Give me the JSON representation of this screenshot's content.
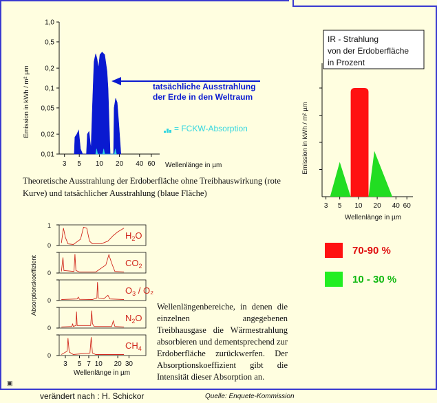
{
  "chart_data": [
    {
      "type": "area",
      "log_y": true,
      "log_x": true,
      "ylabel": "Emission in kWh / m² µm",
      "xlabel": "Wellenlänge in µm",
      "y_ticks": [
        "1,0",
        "0,5",
        "0,2",
        "0,1",
        "0,05",
        "0,02",
        "0,01"
      ],
      "y_tick_values": [
        1.0,
        0.5,
        0.2,
        0.1,
        0.05,
        0.02,
        0.01
      ],
      "x_ticks": [
        "3",
        "5",
        "10",
        "20",
        "40",
        "60"
      ],
      "x_tick_values": [
        3,
        5,
        10,
        20,
        40,
        60
      ],
      "ylim": [
        0.01,
        1.0
      ],
      "xlim": [
        2.5,
        80
      ],
      "series": [
        {
          "color": "#0a1ad0",
          "points": [
            [
              4.2,
              0.01
            ],
            [
              4.3,
              0.018
            ],
            [
              4.6,
              0.02
            ],
            [
              4.9,
              0.023
            ],
            [
              5.2,
              0.012
            ],
            [
              5.6,
              0.01
            ],
            [
              6.4,
              0.01
            ],
            [
              6.6,
              0.02
            ],
            [
              7.0,
              0.022
            ],
            [
              7.3,
              0.015
            ],
            [
              7.5,
              0.012
            ],
            [
              7.8,
              0.04
            ],
            [
              8.3,
              0.25
            ],
            [
              8.8,
              0.33
            ],
            [
              9.2,
              0.28
            ],
            [
              9.7,
              0.2
            ],
            [
              10.2,
              0.32
            ],
            [
              11.0,
              0.35
            ],
            [
              12.0,
              0.32
            ],
            [
              13.0,
              0.18
            ],
            [
              13.5,
              0.1
            ],
            [
              14.5,
              0.01
            ],
            [
              16.3,
              0.01
            ],
            [
              16.6,
              0.05
            ],
            [
              17.5,
              0.07
            ],
            [
              18.5,
              0.06
            ],
            [
              19.5,
              0.03
            ],
            [
              21.0,
              0.01
            ]
          ]
        },
        {
          "color": "#33d6e0",
          "points": [
            [
              8.8,
              0.01
            ],
            [
              9.1,
              0.012
            ],
            [
              9.4,
              0.01
            ],
            [
              11.2,
              0.01
            ],
            [
              11.6,
              0.012
            ],
            [
              12.0,
              0.01
            ],
            [
              16.8,
              0.01
            ],
            [
              17.3,
              0.012
            ],
            [
              18.0,
              0.01
            ]
          ]
        }
      ],
      "annotation": "tatsächliche Ausstrahlung der Erde in den Weltraum",
      "annotation_lines": [
        "tatsächliche Ausstrahlung",
        "der Erde in den Weltraum"
      ],
      "legend": "= FCKW-Absorption"
    },
    {
      "type": "area",
      "title": "IR - Strahlung von der Erdoberfläche in Prozent",
      "title_lines": [
        "IR - Strahlung",
        "von der Erdoberfläche",
        "in Prozent"
      ],
      "ylabel": "Emission in kWh / m² µm",
      "xlabel": "Wellenlänge in µm",
      "x_ticks": [
        "3",
        "5",
        "10",
        "20",
        "40",
        "60"
      ],
      "x_tick_values": [
        3,
        5,
        10,
        20,
        40,
        60
      ],
      "regions": [
        {
          "range": [
            3.5,
            7.5
          ],
          "peak_x": 5,
          "peak": 0.32,
          "color": "#22dd22"
        },
        {
          "range": [
            7.5,
            14.5
          ],
          "peak": 1.0,
          "color": "#ff1111"
        },
        {
          "range": [
            14.5,
            35
          ],
          "peak_x": 18,
          "peak": 0.42,
          "color": "#22dd22"
        }
      ]
    },
    {
      "type": "line",
      "ylabel": "Absorptionskoeffizient",
      "xlabel": "Wellenlänge in µm",
      "x_ticks": [
        "3",
        "5",
        "7",
        "10",
        "20",
        "30"
      ],
      "x_tick_values": [
        3,
        5,
        7,
        10,
        20,
        30
      ],
      "y_ticks": [
        "1",
        "0"
      ],
      "color": "#d0281c",
      "panels": [
        {
          "gas": "H2O",
          "gas_base": "H",
          "gas_sub": "2",
          "gas_rest": "O"
        },
        {
          "gas": "CO2",
          "gas_base": "CO",
          "gas_sub": "2",
          "gas_rest": ""
        },
        {
          "gas": "O3 / O2",
          "gas_base": "O",
          "gas_sub": "3",
          "gas_rest": " / O₂"
        },
        {
          "gas": "N2O",
          "gas_base": "N",
          "gas_sub": "2",
          "gas_rest": "O"
        },
        {
          "gas": "CH4",
          "gas_base": "CH",
          "gas_sub": "4",
          "gas_rest": ""
        }
      ]
    }
  ],
  "captions": {
    "top": "Theoretische Ausstrahlung der Erdoberfläche ohne Treibhauswirkung (rote Kurve) und tatsächlicher Ausstrahlung (blaue Fläche)",
    "absorption": "Wellenlängenbereiche, in denen die einzelnen angegebenen Treibhausgase die Wärmestrahlung absorbieren und dementsprechend zur Erdoberfläche zurückwerfen. Der Absorptionskoeffizient gibt die Intensität dieser Absorption an."
  },
  "legend": {
    "red": {
      "label": "70-90 %",
      "color": "#ff1111",
      "text_color": "#e01010"
    },
    "green": {
      "label": "10 - 30 %",
      "color": "#22ee22",
      "text_color": "#10b810"
    }
  },
  "footer": {
    "left": "verändert nach : H. Schickor",
    "right": "Quelle: Enquete-Kommission"
  },
  "colors": {
    "frame": "#3a3ad0",
    "background": "#fffee0",
    "blue": "#0a1ad0",
    "cyan": "#33d6e0"
  }
}
